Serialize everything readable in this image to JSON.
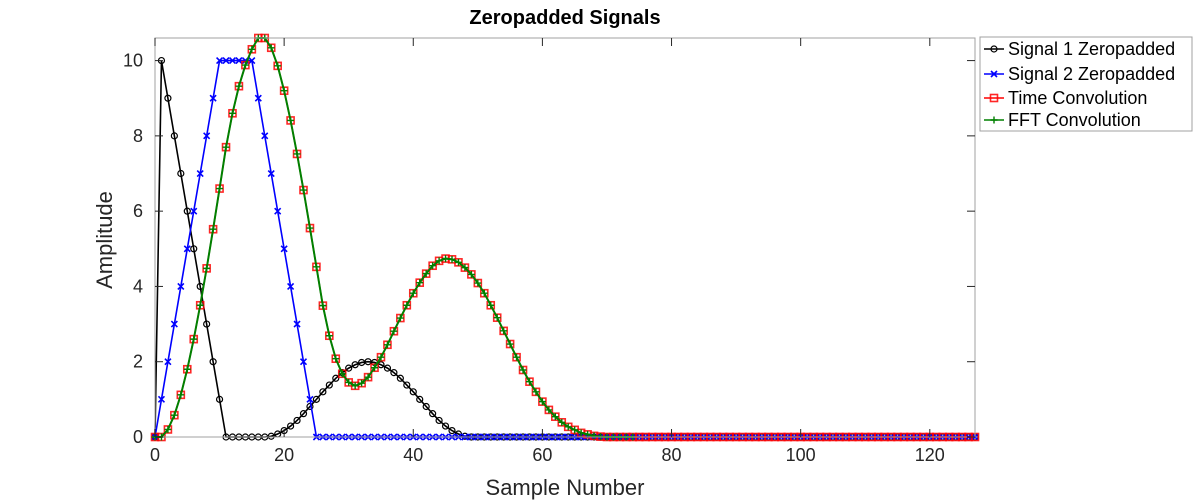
{
  "chart_data": {
    "type": "line",
    "title": "Zeropadded Signals",
    "xlabel": "Sample Number",
    "ylabel": "Amplitude",
    "xlim": [
      0,
      127
    ],
    "ylim": [
      0,
      10.6
    ],
    "xticks": [
      0,
      20,
      40,
      60,
      80,
      100,
      120
    ],
    "yticks": [
      0,
      2,
      4,
      6,
      8,
      10
    ],
    "grid": false,
    "legend_position": "outside-top-right",
    "series": [
      {
        "name": "Signal 1 Zeropadded",
        "color": "#000000",
        "marker": "circle",
        "length": 128,
        "values": [
          0,
          10,
          9,
          8,
          7,
          6,
          5,
          4,
          3,
          2,
          1,
          0,
          0,
          0,
          0,
          0,
          0,
          0,
          0.02,
          0.08,
          0.17,
          0.29,
          0.44,
          0.62,
          0.81,
          1,
          1.2,
          1.38,
          1.56,
          1.71,
          1.83,
          1.92,
          1.98,
          2,
          1.98,
          1.92,
          1.83,
          1.71,
          1.56,
          1.38,
          1.2,
          1,
          0.81,
          0.62,
          0.44,
          0.29,
          0.17,
          0.08,
          0.02,
          0
        ]
      },
      {
        "name": "Signal 2 Zeropadded",
        "color": "#0000ff",
        "marker": "x",
        "length": 128,
        "values": [
          0,
          1,
          2,
          3,
          4,
          5,
          6,
          7,
          8,
          9,
          10,
          10,
          10,
          10,
          10,
          10,
          9,
          8,
          7,
          6,
          5,
          4,
          3,
          2,
          1,
          0
        ]
      },
      {
        "name": "Time Convolution",
        "color": "#ff0000",
        "marker": "square",
        "length": 128,
        "values": [
          0,
          0,
          0.2,
          0.58,
          1.12,
          1.8,
          2.6,
          3.5,
          4.48,
          5.52,
          6.6,
          7.7,
          8.6,
          9.32,
          9.88,
          10.3,
          10.6,
          10.6,
          10.34,
          9.86,
          9.2,
          8.41,
          7.52,
          6.56,
          5.55,
          4.52,
          3.49,
          2.69,
          2.08,
          1.68,
          1.45,
          1.36,
          1.43,
          1.59,
          1.84,
          2.12,
          2.45,
          2.81,
          3.16,
          3.5,
          3.82,
          4.1,
          4.34,
          4.55,
          4.68,
          4.74,
          4.72,
          4.64,
          4.5,
          4.32,
          4.09,
          3.82,
          3.5,
          3.17,
          2.82,
          2.47,
          2.12,
          1.78,
          1.47,
          1.2,
          0.94,
          0.72,
          0.54,
          0.39,
          0.27,
          0.19,
          0.11,
          0.07,
          0.03,
          0.01
        ]
      },
      {
        "name": "FFT Convolution",
        "color": "#008000",
        "marker": "plus",
        "length": 75,
        "values": [
          0,
          0,
          0.2,
          0.58,
          1.12,
          1.8,
          2.6,
          3.5,
          4.48,
          5.52,
          6.6,
          7.7,
          8.6,
          9.32,
          9.88,
          10.3,
          10.6,
          10.6,
          10.34,
          9.86,
          9.2,
          8.41,
          7.52,
          6.56,
          5.55,
          4.52,
          3.49,
          2.69,
          2.08,
          1.68,
          1.45,
          1.36,
          1.43,
          1.59,
          1.84,
          2.12,
          2.45,
          2.81,
          3.16,
          3.5,
          3.82,
          4.1,
          4.34,
          4.55,
          4.68,
          4.74,
          4.72,
          4.64,
          4.5,
          4.32,
          4.09,
          3.82,
          3.5,
          3.17,
          2.82,
          2.47,
          2.12,
          1.78,
          1.47,
          1.2,
          0.94,
          0.72,
          0.54,
          0.39,
          0.27,
          0.19,
          0.11,
          0.07,
          0.03,
          0.01
        ]
      }
    ]
  }
}
